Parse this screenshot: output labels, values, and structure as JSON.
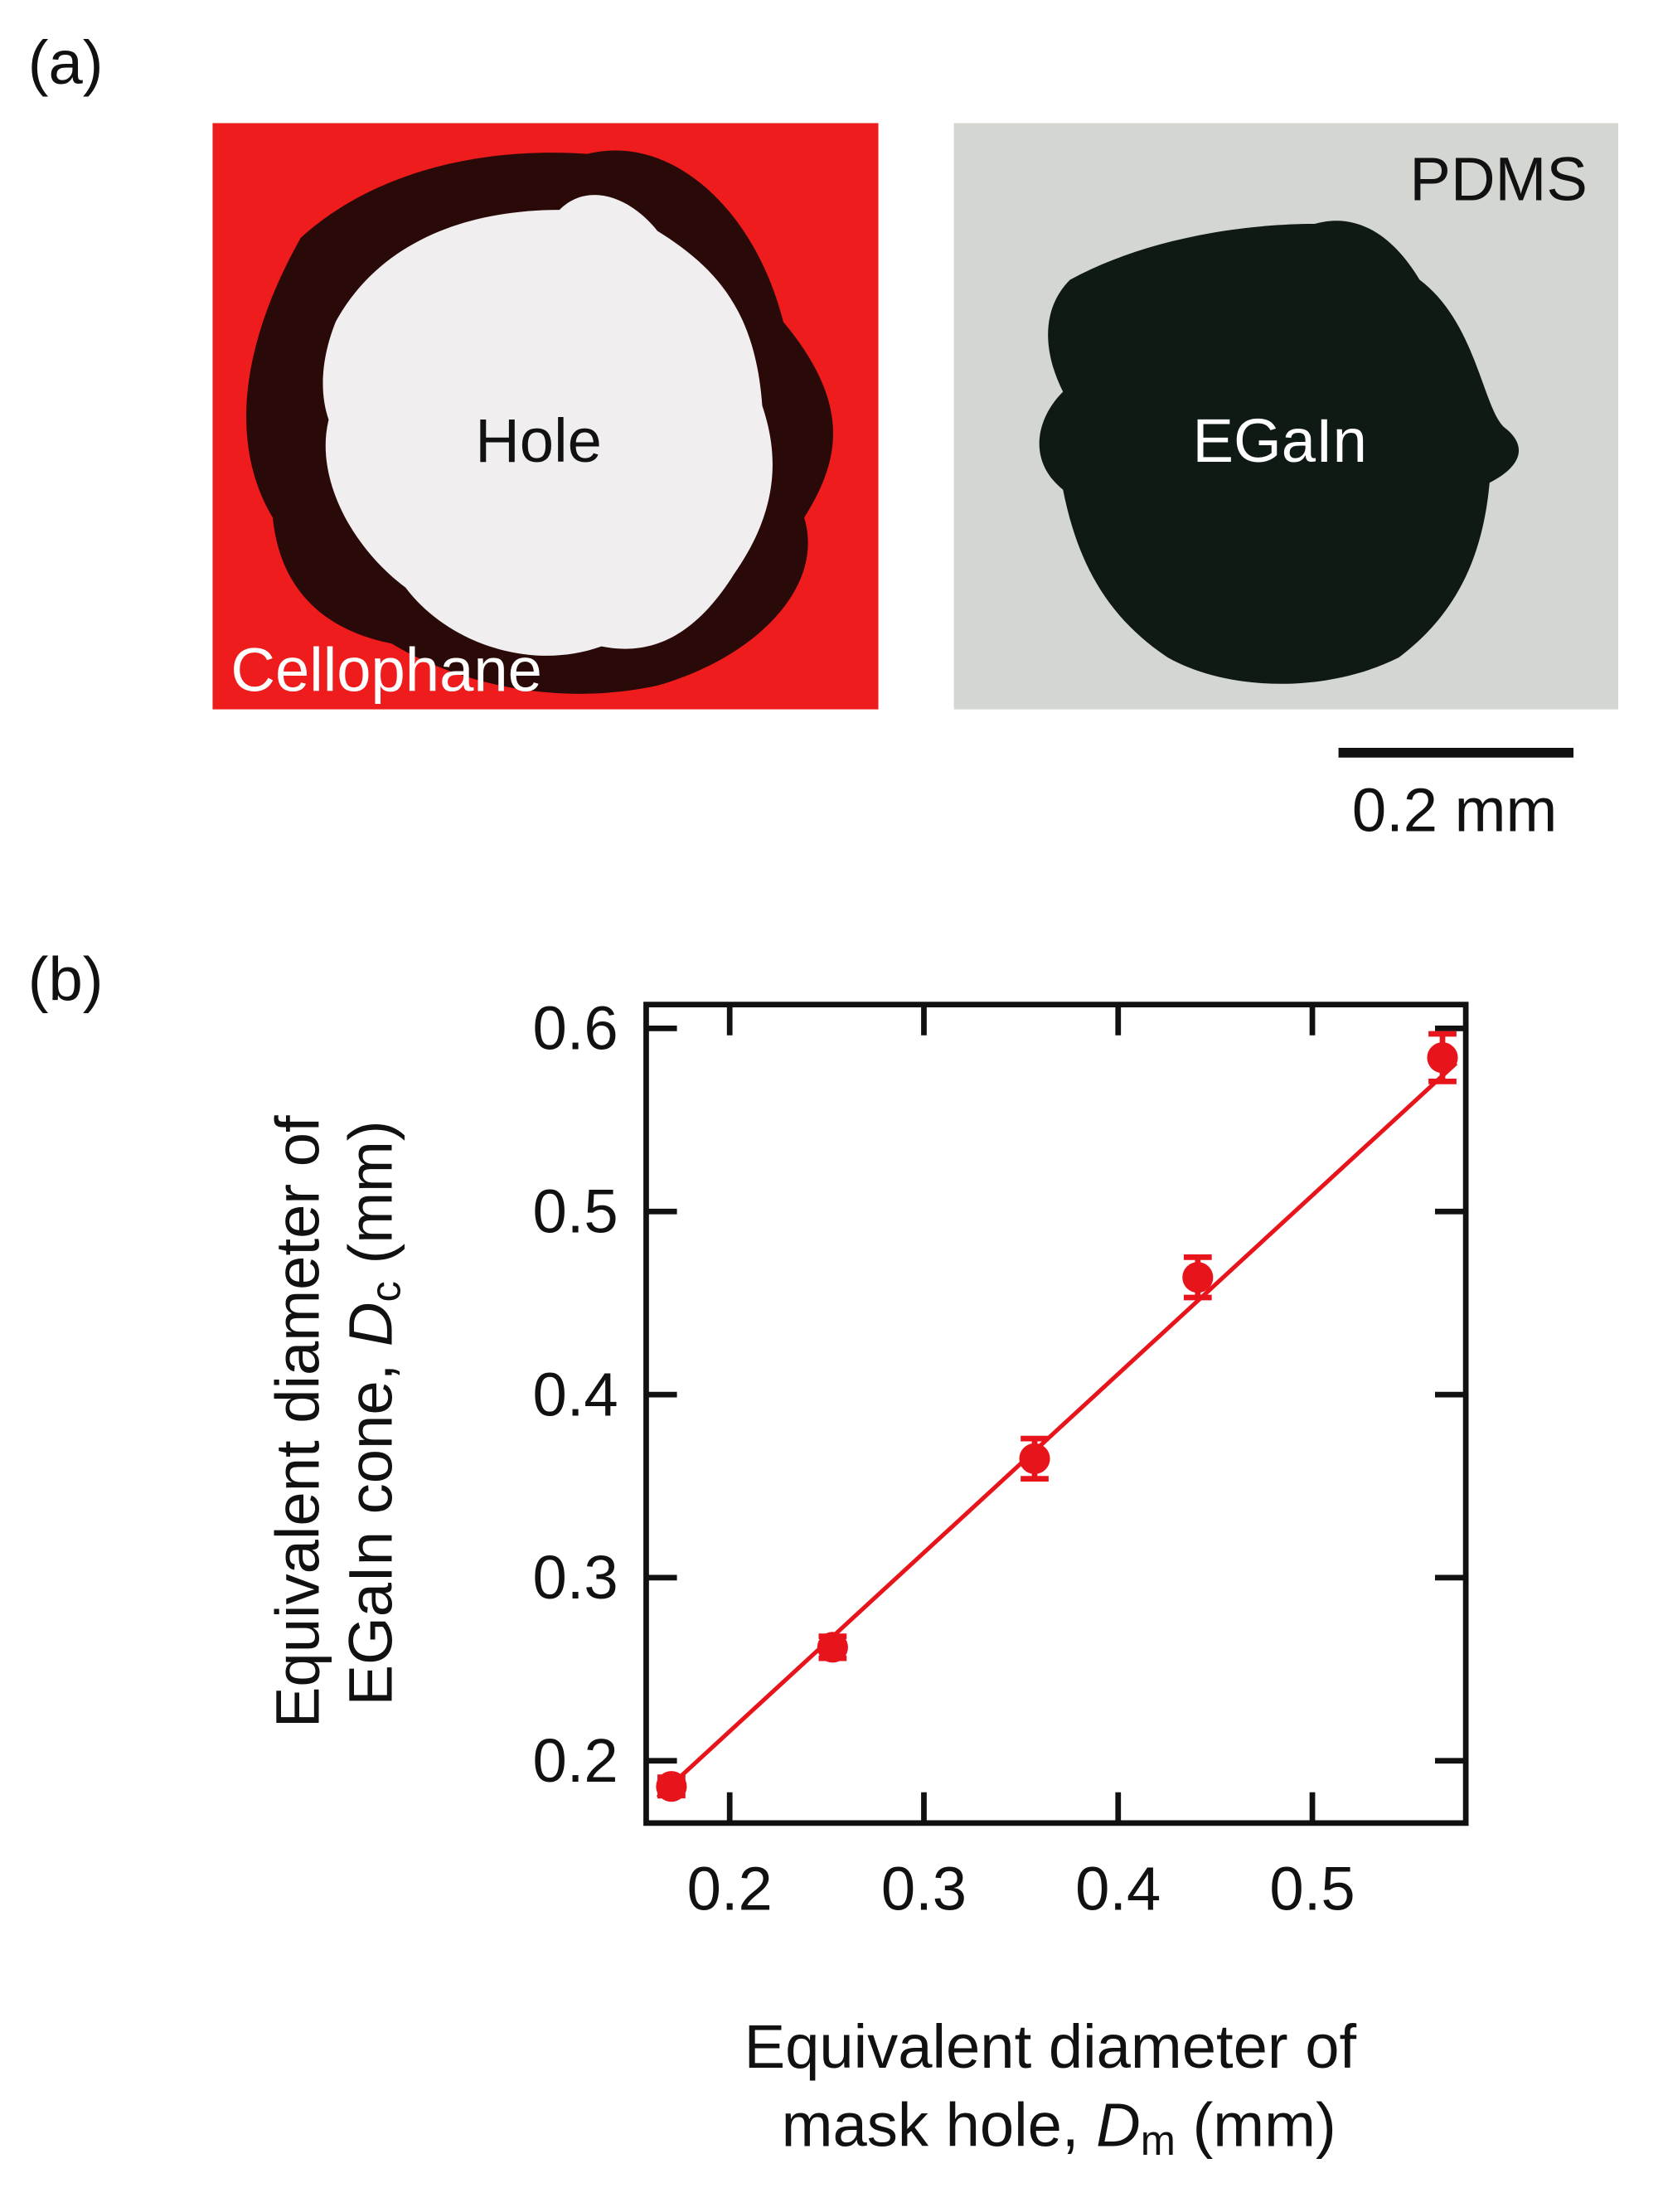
{
  "panel_a": {
    "label": "(a)",
    "left_image": {
      "center": "Hole",
      "substrate": "Cellophane"
    },
    "right_image": {
      "center": "EGaIn",
      "substrate": "PDMS"
    },
    "scale_bar": "0.2 mm"
  },
  "chart_data": {
    "type": "scatter",
    "panel_label": "(b)",
    "x_label": {
      "line1": "Equivalent diameter of",
      "prefix": "mask hole, ",
      "symbol": "D",
      "subscript": "m",
      "unit": " (mm)"
    },
    "y_label": {
      "line1": "Equivalent diameter of",
      "prefix": "EGaIn cone, ",
      "symbol": "D",
      "subscript": "c",
      "unit": " (mm)"
    },
    "x": [
      0.17,
      0.253,
      0.357,
      0.441,
      0.567
    ],
    "series": [
      {
        "color": "#e8141c",
        "values": [
          0.186,
          0.262,
          0.365,
          0.464,
          0.584
        ],
        "errors": [
          0.005,
          0.006,
          0.011,
          0.011,
          0.013
        ]
      }
    ],
    "fit": {
      "color": "#e8141c",
      "x": [
        0.163,
        0.574
      ],
      "y": [
        0.18,
        0.581
      ]
    },
    "xlim": [
      0.157,
      0.579
    ],
    "ylim": [
      0.166,
      0.613
    ],
    "xticks": [
      0.2,
      0.3,
      0.4,
      0.5
    ],
    "yticks": [
      0.2,
      0.3,
      0.4,
      0.5,
      0.6
    ]
  }
}
